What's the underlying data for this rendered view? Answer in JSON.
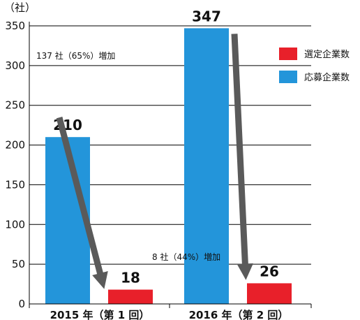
{
  "colors": {
    "applicants": "#2395DA",
    "selected": "#E8202A",
    "arrow": "#5A5A5A",
    "grid": "#000000"
  },
  "chart_data": {
    "type": "bar",
    "unit": "（社）",
    "categories": [
      "2015 年（第 1 回）",
      "2016 年（第 2 回）"
    ],
    "series": [
      {
        "name": "応募企業数",
        "values": [
          210,
          347
        ]
      },
      {
        "name": "選定企業数",
        "values": [
          18,
          26
        ]
      }
    ],
    "ylim": [
      0,
      350
    ],
    "yticks": [
      0,
      50,
      100,
      150,
      200,
      250,
      300,
      350
    ],
    "grid": true,
    "legend_position": "top-right",
    "legend_order": [
      "選定企業数",
      "応募企業数"
    ],
    "annotations": [
      {
        "text": "137 社（65%）増加",
        "series": "応募企業数"
      },
      {
        "text": "8 社（44%）増加",
        "series": "選定企業数"
      }
    ]
  }
}
